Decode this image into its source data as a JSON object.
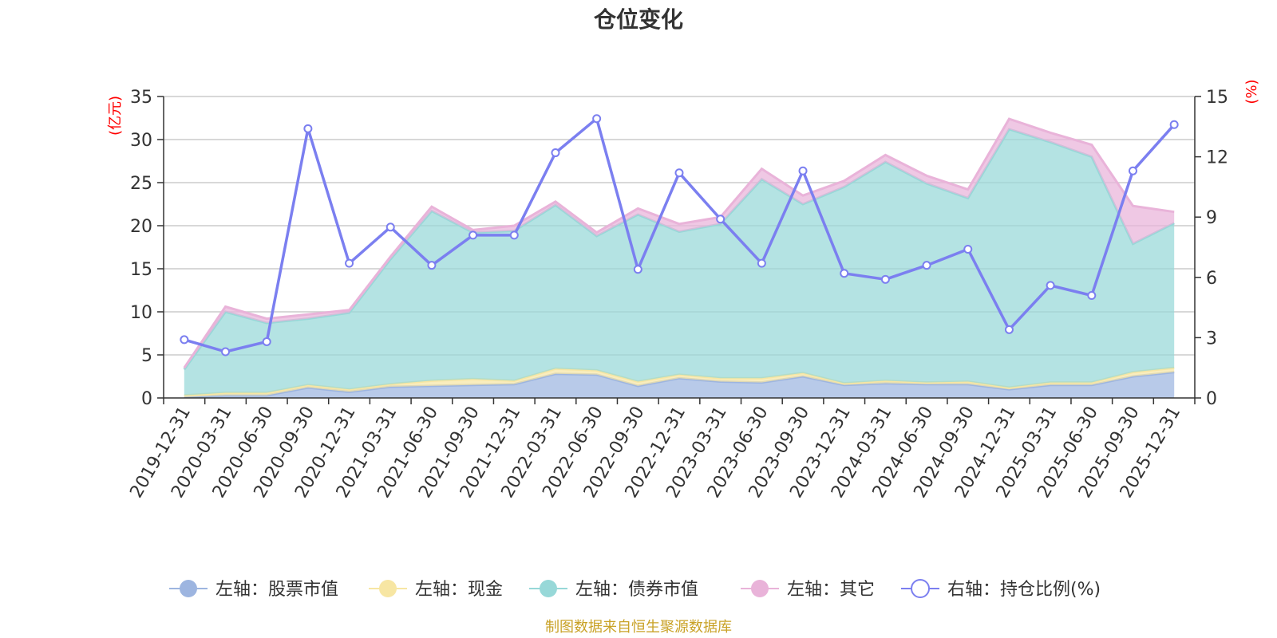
{
  "chart_data": {
    "type": "area+line",
    "title": "仓位变化",
    "left_axis": {
      "unit": "(亿元)",
      "ticks": [
        "0",
        "5",
        "10",
        "15",
        "20",
        "25",
        "30",
        "35"
      ],
      "ylim": [
        0,
        35
      ]
    },
    "right_axis": {
      "unit": "(%)",
      "ticks": [
        "0",
        "3",
        "6",
        "9",
        "12",
        "15"
      ],
      "ylim": [
        0,
        15
      ]
    },
    "categories": [
      "2019-12-31",
      "2020-03-31",
      "2020-06-30",
      "2020-09-30",
      "2020-12-31",
      "2021-03-31",
      "2021-06-30",
      "2021-09-30",
      "2021-12-31",
      "2022-03-31",
      "2022-06-30",
      "2022-09-30",
      "2022-12-31",
      "2023-03-31",
      "2023-06-30",
      "2023-09-30",
      "2023-12-31",
      "2024-03-31",
      "2024-06-30",
      "2024-09-30",
      "2024-12-31",
      "2025-03-31",
      "2025-06-30",
      "2025-09-30",
      "2025-12-31"
    ],
    "series": [
      {
        "name": "左轴：股票市值",
        "axis": "left",
        "type": "stacked-area",
        "color": "#9db5e0",
        "values": [
          0.1,
          0.3,
          0.3,
          1.2,
          0.7,
          1.3,
          1.4,
          1.5,
          1.6,
          2.8,
          2.7,
          1.4,
          2.3,
          1.9,
          1.8,
          2.5,
          1.5,
          1.7,
          1.6,
          1.6,
          1.0,
          1.5,
          1.5,
          2.5,
          3.0
        ]
      },
      {
        "name": "左轴：现金",
        "axis": "left",
        "type": "stacked-area",
        "color": "#f7e6a3",
        "values": [
          0.2,
          0.3,
          0.3,
          0.3,
          0.3,
          0.3,
          0.6,
          0.7,
          0.4,
          0.6,
          0.5,
          0.5,
          0.4,
          0.4,
          0.5,
          0.4,
          0.2,
          0.3,
          0.2,
          0.3,
          0.2,
          0.3,
          0.3,
          0.5,
          0.5
        ]
      },
      {
        "name": "左轴：债券市值",
        "axis": "left",
        "type": "stacked-area",
        "color": "#97d8d8",
        "values": [
          3.0,
          9.4,
          8.1,
          7.7,
          8.9,
          14.5,
          19.7,
          17.0,
          17.4,
          19.0,
          15.6,
          19.4,
          16.6,
          17.9,
          23.1,
          19.6,
          22.8,
          25.4,
          23.1,
          21.3,
          30.0,
          27.9,
          26.2,
          14.9,
          16.8
        ]
      },
      {
        "name": "左轴：其它",
        "axis": "left",
        "type": "stacked-area",
        "color": "#e9b3d9",
        "values": [
          0.2,
          0.6,
          0.5,
          0.5,
          0.3,
          0.3,
          0.5,
          0.3,
          0.6,
          0.4,
          0.4,
          0.7,
          0.9,
          0.8,
          1.2,
          1.0,
          0.7,
          0.8,
          0.9,
          1.0,
          1.2,
          1.1,
          1.4,
          4.4,
          1.3
        ]
      },
      {
        "name": "右轴：持仓比例(%)",
        "axis": "right",
        "type": "line",
        "color": "#7b7ff0",
        "values": [
          2.9,
          2.3,
          2.8,
          13.4,
          6.7,
          8.5,
          6.6,
          8.1,
          8.1,
          12.2,
          13.9,
          6.4,
          11.2,
          8.9,
          6.7,
          11.3,
          6.2,
          5.9,
          6.6,
          7.4,
          3.4,
          5.6,
          5.1,
          11.3,
          13.6
        ]
      }
    ]
  },
  "source_text": "制图数据来自恒生聚源数据库"
}
